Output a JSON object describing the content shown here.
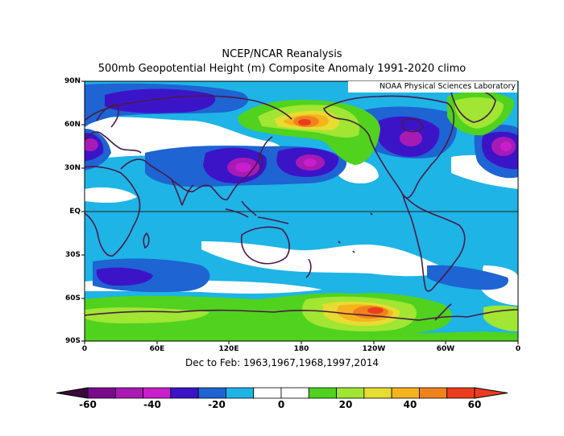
{
  "header": {
    "title_line1": "NCEP/NCAR Reanalysis",
    "title_line2": "500mb Geopotential Height (m) Composite Anomaly 1991-2020 climo"
  },
  "lab_label": "NOAA Physical Sciences Laboratory",
  "subtitle": "Dec to Feb: 1963,1967,1968,1997,2014",
  "axes": {
    "lat_labels": [
      "90N",
      "60N",
      "30N",
      "EQ",
      "30S",
      "60S",
      "90S"
    ],
    "lon_labels": [
      "0",
      "60E",
      "120E",
      "180",
      "120W",
      "60W",
      "0"
    ]
  },
  "colorbar": {
    "labels": [
      "-60",
      "-40",
      "-20",
      "0",
      "20",
      "40",
      "60"
    ],
    "colors": [
      "#7a0a8c",
      "#a81ab4",
      "#c81ecc",
      "#3c14c8",
      "#1e64d2",
      "#1eb4e6",
      "#ffffff",
      "#ffffff",
      "#50d21e",
      "#a0e632",
      "#e6dc32",
      "#f5b41e",
      "#f0821e",
      "#eb3c1e"
    ]
  },
  "chart_data": {
    "type": "heatmap",
    "variable": "500mb Geopotential Height (m) Composite Anomaly",
    "levels": [
      -70,
      -60,
      -50,
      -40,
      -30,
      -20,
      -10,
      0,
      10,
      20,
      30,
      40,
      50,
      60,
      70
    ],
    "xlim": [
      0,
      360
    ],
    "ylim": [
      -90,
      90
    ],
    "features": [
      {
        "lon": 30,
        "lat": 75,
        "value": -45
      },
      {
        "lon": 5,
        "lat": 45,
        "value": -45
      },
      {
        "lon": 120,
        "lat": 30,
        "value": -35
      },
      {
        "lon": 155,
        "lat": 30,
        "value": -45
      },
      {
        "lon": 190,
        "lat": 30,
        "value": -50
      },
      {
        "lon": 285,
        "lat": 50,
        "value": -45
      },
      {
        "lon": 350,
        "lat": 45,
        "value": -50
      },
      {
        "lon": 35,
        "lat": -45,
        "value": -40
      },
      {
        "lon": 188,
        "lat": 60,
        "value": 55
      },
      {
        "lon": 235,
        "lat": -65,
        "value": 60
      },
      {
        "lon": 305,
        "lat": 72,
        "value": 25
      },
      {
        "lon": 40,
        "lat": -70,
        "value": 15
      }
    ]
  }
}
